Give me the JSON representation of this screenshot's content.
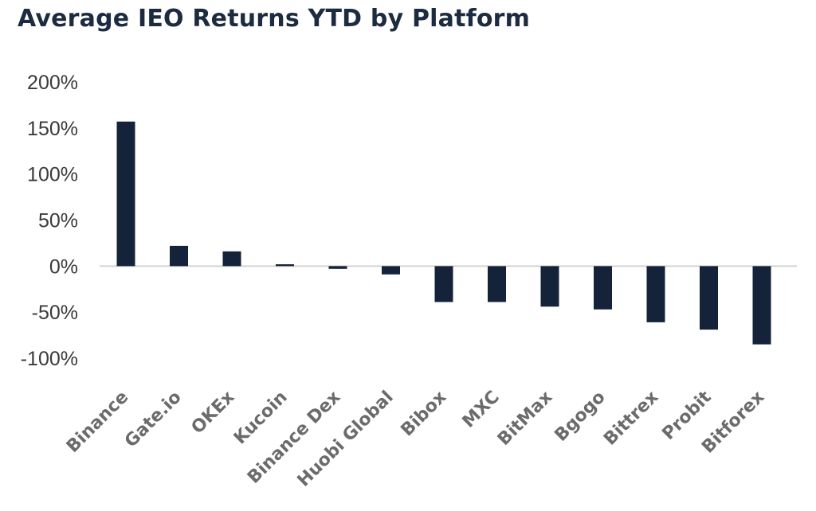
{
  "chart_data": {
    "type": "bar",
    "title": "Average IEO Returns YTD by Platform",
    "xlabel": "",
    "ylabel": "",
    "categories": [
      "Binance",
      "Gate.io",
      "OKEx",
      "Kucoin",
      "Binance Dex",
      "Huobi Global",
      "Bibox",
      "MXC",
      "BitMax",
      "Bgogo",
      "Bittrex",
      "Probit",
      "Bitforex"
    ],
    "values": [
      157,
      22,
      16,
      2,
      -3,
      -9,
      -39,
      -39,
      -44,
      -47,
      -61,
      -69,
      -85
    ],
    "value_format": "percent",
    "ylim": [
      -100,
      200
    ],
    "y_ticks": [
      200,
      150,
      100,
      50,
      0,
      -50,
      -100
    ],
    "y_tick_labels": [
      "200%",
      "150%",
      "100%",
      "50%",
      "0%",
      "-50%",
      "-100%"
    ],
    "grid": false,
    "legend": "none",
    "bar_color": "#15233a",
    "baseline_color": "#d4d4d4"
  }
}
